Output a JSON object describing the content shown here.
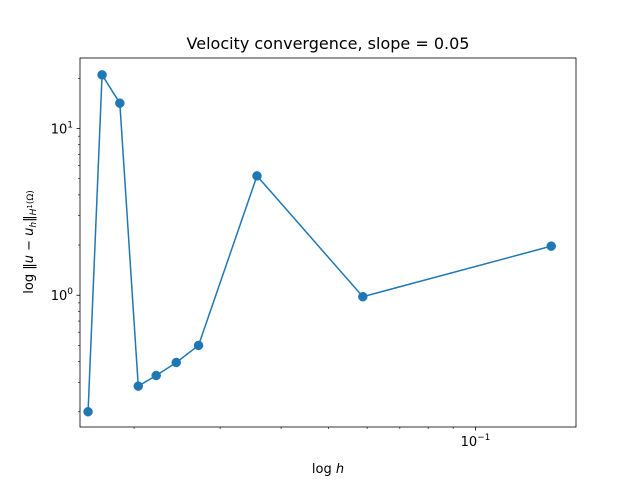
{
  "chart_data": {
    "type": "line",
    "title": "Velocity convergence, slope = 0.05",
    "xlabel": "log h",
    "ylabel": "log ‖u − u_h‖_{H¹(Ω)}",
    "xscale": "log",
    "yscale": "log",
    "xlim": [
      0.0155,
      0.1606
    ],
    "ylim": [
      0.162,
      26.5
    ],
    "grid": false,
    "x_tick_labels": [
      {
        "value": 0.1,
        "base": "10",
        "exp": "−1"
      }
    ],
    "y_tick_labels": [
      {
        "value": 1,
        "base": "10",
        "exp": "0"
      },
      {
        "value": 10,
        "base": "10",
        "exp": "1"
      }
    ],
    "series": [
      {
        "color": "#1f77b4",
        "marker": "circle",
        "x": [
          0.0161,
          0.0172,
          0.0187,
          0.0204,
          0.0222,
          0.0244,
          0.0271,
          0.0357,
          0.0588,
          0.1429
        ],
        "y": [
          0.2,
          21.0,
          14.2,
          0.285,
          0.33,
          0.395,
          0.5,
          5.2,
          0.98,
          1.97
        ]
      }
    ]
  }
}
